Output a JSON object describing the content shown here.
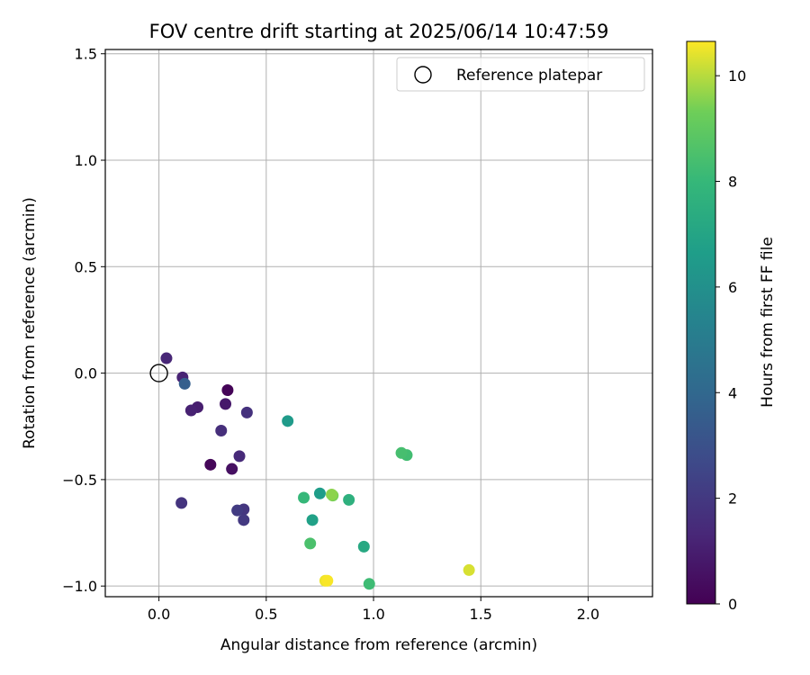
{
  "chart_data": {
    "type": "scatter",
    "title": "FOV centre drift starting at 2025/06/14 10:47:59",
    "xlabel": "Angular distance from reference (arcmin)",
    "ylabel": "Rotation from reference (arcmin)",
    "xlim": [
      -0.25,
      2.3
    ],
    "ylim": [
      -1.05,
      1.52
    ],
    "xticks": [
      0.0,
      0.5,
      1.0,
      1.5,
      2.0
    ],
    "xtick_labels": [
      "0.0",
      "0.5",
      "1.0",
      "1.5",
      "2.0"
    ],
    "yticks": [
      -1.0,
      -0.5,
      0.0,
      0.5,
      1.0,
      1.5
    ],
    "ytick_labels": [
      "−1.0",
      "−0.5",
      "0.0",
      "0.5",
      "1.0",
      "1.5"
    ],
    "grid": true,
    "legend": {
      "placement": "top-right",
      "entries": [
        "Reference platepar"
      ]
    },
    "reference_point": {
      "x": 0.0,
      "y": 0.0,
      "marker": "open-circle"
    },
    "colorbar": {
      "label": "Hours from first FF file",
      "colormap": "viridis",
      "range": [
        0,
        10.65
      ],
      "ticks": [
        0,
        2,
        4,
        6,
        8,
        10
      ],
      "tick_labels": [
        "0",
        "2",
        "4",
        "6",
        "8",
        "10"
      ]
    },
    "points": [
      {
        "x": 0.32,
        "y": -0.08,
        "hours": 0.1
      },
      {
        "x": 0.24,
        "y": -0.43,
        "hours": 0.2
      },
      {
        "x": 0.34,
        "y": -0.45,
        "hours": 0.5
      },
      {
        "x": 0.31,
        "y": -0.145,
        "hours": 0.8
      },
      {
        "x": 0.18,
        "y": -0.16,
        "hours": 1.0
      },
      {
        "x": 0.15,
        "y": -0.175,
        "hours": 1.1
      },
      {
        "x": 0.11,
        "y": -0.02,
        "hours": 1.2
      },
      {
        "x": 0.035,
        "y": 0.07,
        "hours": 1.3
      },
      {
        "x": 0.375,
        "y": -0.39,
        "hours": 1.4
      },
      {
        "x": 0.29,
        "y": -0.27,
        "hours": 1.6
      },
      {
        "x": 0.41,
        "y": -0.185,
        "hours": 1.7
      },
      {
        "x": 0.105,
        "y": -0.61,
        "hours": 1.8
      },
      {
        "x": 0.395,
        "y": -0.64,
        "hours": 1.9
      },
      {
        "x": 0.395,
        "y": -0.69,
        "hours": 2.0
      },
      {
        "x": 0.365,
        "y": -0.645,
        "hours": 2.1
      },
      {
        "x": 0.12,
        "y": -0.05,
        "hours": 3.6
      },
      {
        "x": 0.6,
        "y": -0.225,
        "hours": 6.5
      },
      {
        "x": 0.75,
        "y": -0.565,
        "hours": 6.6
      },
      {
        "x": 0.715,
        "y": -0.69,
        "hours": 6.8
      },
      {
        "x": 0.955,
        "y": -0.815,
        "hours": 7.2
      },
      {
        "x": 0.885,
        "y": -0.595,
        "hours": 7.6
      },
      {
        "x": 0.675,
        "y": -0.585,
        "hours": 8.0
      },
      {
        "x": 0.98,
        "y": -0.99,
        "hours": 8.2
      },
      {
        "x": 1.155,
        "y": -0.385,
        "hours": 8.3
      },
      {
        "x": 1.13,
        "y": -0.375,
        "hours": 8.4
      },
      {
        "x": 0.705,
        "y": -0.8,
        "hours": 8.5
      },
      {
        "x": 0.81,
        "y": -0.575,
        "hours": 9.4
      },
      {
        "x": 0.805,
        "y": -0.57,
        "hours": 9.6
      },
      {
        "x": 1.445,
        "y": -0.925,
        "hours": 10.3
      },
      {
        "x": 0.775,
        "y": -0.975,
        "hours": 10.5
      },
      {
        "x": 0.785,
        "y": -0.975,
        "hours": 10.6
      }
    ]
  }
}
